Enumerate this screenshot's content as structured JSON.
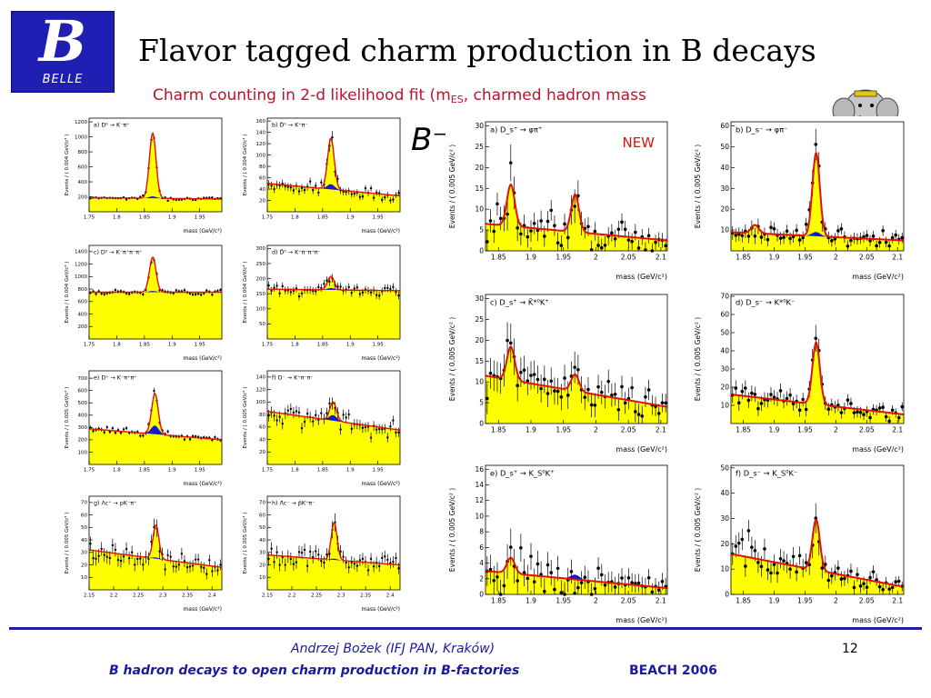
{
  "slide": {
    "title": "Flavor tagged charm production in B decays",
    "subtitle": "Charm counting in 2-d likelihood fit (m",
    "subtitle_sub": "ES",
    "subtitle_rest": ", charmed hadron mass",
    "b_label": "B⁻",
    "new_badge": "NEW",
    "page_number": "12",
    "logo_letter": "B",
    "logo_word": "BELLE"
  },
  "footer": {
    "author": "Andrzej Bożek (IFJ PAN, Kraków)",
    "talk_title": "B hadron decays to open charm production in B-factories",
    "conference": "BEACH 2006"
  },
  "colors": {
    "fill": "#ffff00",
    "curve": "#e01010",
    "signal_blue": "#1818d0",
    "footer_blue": "#1a1aa0",
    "subtitle_red": "#c0102a"
  },
  "chart_data": [
    {
      "type": "scatter",
      "panel": "a)",
      "channel": "D⁰ → K⁻π⁺",
      "ylabel": "Events / ( 0.004 GeV/c² )",
      "xlabel": "mass (GeV/c²)",
      "xticks": [
        "1.75",
        "1.8",
        "1.85",
        "1.9",
        "1.95"
      ],
      "yticks": [
        "200",
        "400",
        "600",
        "800",
        "1000",
        "1200"
      ],
      "xlim": [
        1.75,
        1.99
      ],
      "ylim": [
        0,
        1250
      ],
      "background": [
        190,
        170
      ],
      "peaks": [
        {
          "x": 1.865,
          "height": 870,
          "width": 0.006
        }
      ],
      "blue_peak": {
        "x": 1.865,
        "height": 25
      }
    },
    {
      "type": "scatter",
      "panel": "b)",
      "channel": "D̄⁰ → K⁺π⁻",
      "ylabel": "Events / ( 0.004 GeV/c² )",
      "xlabel": "mass (GeV/c²)",
      "xticks": [
        "1.75",
        "1.8",
        "1.85",
        "1.9",
        "1.95"
      ],
      "yticks": [
        "20",
        "40",
        "60",
        "80",
        "100",
        "120",
        "140",
        "160"
      ],
      "xlim": [
        1.75,
        1.99
      ],
      "ylim": [
        0,
        165
      ],
      "background": [
        50,
        28
      ],
      "peaks": [
        {
          "x": 1.865,
          "height": 90,
          "width": 0.006
        }
      ],
      "blue_peak": {
        "x": 1.865,
        "height": 9
      }
    },
    {
      "type": "scatter",
      "panel": "c)",
      "channel": "D⁰ → K⁻π⁺π⁻π⁺",
      "ylabel": "Events / ( 0.004 GeV/c² )",
      "xlabel": "mass (GeV/c²)",
      "xticks": [
        "1.75",
        "1.8",
        "1.85",
        "1.9",
        "1.95"
      ],
      "yticks": [
        "200",
        "400",
        "600",
        "800",
        "1000",
        "1200",
        "1400"
      ],
      "xlim": [
        1.75,
        1.99
      ],
      "ylim": [
        0,
        1500
      ],
      "background": [
        750,
        750
      ],
      "peaks": [
        {
          "x": 1.865,
          "height": 560,
          "width": 0.006
        }
      ],
      "blue_peak": {
        "x": 1.865,
        "height": 20
      }
    },
    {
      "type": "scatter",
      "panel": "d)",
      "channel": "D̄⁰ → K⁺π⁻π⁺π⁻",
      "ylabel": "Events / ( 0.004 GeV/c² )",
      "xlabel": "mass (GeV/c²)",
      "xticks": [
        "1.75",
        "1.8",
        "1.85",
        "1.9",
        "1.95"
      ],
      "yticks": [
        "50",
        "100",
        "150",
        "200",
        "250",
        "300"
      ],
      "xlim": [
        1.75,
        1.99
      ],
      "ylim": [
        0,
        310
      ],
      "background": [
        165,
        160
      ],
      "peaks": [
        {
          "x": 1.865,
          "height": 45,
          "width": 0.006
        }
      ],
      "blue_peak": {
        "x": 1.865,
        "height": 6
      }
    },
    {
      "type": "scatter",
      "panel": "e)",
      "channel": "D⁺ → K⁻π⁺π⁺",
      "ylabel": "Events / ( 0.005 GeV/c² )",
      "xlabel": "mass (GeV/c²)",
      "xticks": [
        "1.75",
        "1.8",
        "1.85",
        "1.9",
        "1.95"
      ],
      "yticks": [
        "100",
        "200",
        "300",
        "400",
        "500",
        "600",
        "700"
      ],
      "xlim": [
        1.75,
        1.99
      ],
      "ylim": [
        0,
        760
      ],
      "background": [
        290,
        200
      ],
      "peaks": [
        {
          "x": 1.869,
          "height": 330,
          "width": 0.006
        }
      ],
      "blue_peak": {
        "x": 1.869,
        "height": 70
      }
    },
    {
      "type": "scatter",
      "panel": "f)",
      "channel": "D⁻ → K⁺π⁻π⁻",
      "ylabel": "Events / ( 0.005 GeV/c² )",
      "xlabel": "mass (GeV/c²)",
      "xticks": [
        "1.75",
        "1.8",
        "1.85",
        "1.9",
        "1.95"
      ],
      "yticks": [
        "20",
        "40",
        "60",
        "80",
        "100",
        "120",
        "140"
      ],
      "xlim": [
        1.75,
        1.99
      ],
      "ylim": [
        0,
        150
      ],
      "background": [
        85,
        55
      ],
      "peaks": [
        {
          "x": 1.869,
          "height": 30,
          "width": 0.006
        }
      ],
      "blue_peak": {
        "x": 1.869,
        "height": 9
      }
    },
    {
      "type": "scatter",
      "panel": "g)",
      "channel": "Λc⁺ → pK⁻π⁺",
      "ylabel": "Events / ( 0.005 GeV/c² )",
      "xlabel": "mass (GeV/c²)",
      "xticks": [
        "2.15",
        "2.2",
        "2.25",
        "2.3",
        "2.35",
        "2.4"
      ],
      "yticks": [
        "10",
        "20",
        "30",
        "40",
        "50",
        "60",
        "70"
      ],
      "xlim": [
        2.15,
        2.42
      ],
      "ylim": [
        0,
        75
      ],
      "background": [
        32,
        18
      ],
      "peaks": [
        {
          "x": 2.286,
          "height": 27,
          "width": 0.006
        }
      ],
      "blue_peak": {
        "x": 2.286,
        "height": 1
      }
    },
    {
      "type": "scatter",
      "panel": "h)",
      "channel": "Λ̄c⁻ → p̄K⁺π⁻",
      "ylabel": "Events / ( 0.005 GeV/c² )",
      "xlabel": "mass (GeV/c²)",
      "xticks": [
        "2.15",
        "2.2",
        "2.25",
        "2.3",
        "2.35",
        "2.4"
      ],
      "yticks": [
        "10",
        "20",
        "30",
        "40",
        "50",
        "60",
        "70"
      ],
      "xlim": [
        2.15,
        2.42
      ],
      "ylim": [
        0,
        75
      ],
      "background": [
        28,
        20
      ],
      "peaks": [
        {
          "x": 2.286,
          "height": 30,
          "width": 0.006
        }
      ],
      "blue_peak": {
        "x": 2.286,
        "height": 1
      }
    },
    {
      "type": "scatter",
      "panel": "a)",
      "channel": "D_s⁺ → φπ⁺",
      "ylabel": "Events / ( 0.005 GeV/c² )",
      "xlabel": "mass (GeV/c²)",
      "xticks": [
        "1.85",
        "1.9",
        "1.95",
        "2",
        "2.05",
        "2.1"
      ],
      "yticks": [
        "0",
        "5",
        "10",
        "15",
        "20",
        "25",
        "30"
      ],
      "xlim": [
        1.83,
        2.11
      ],
      "ylim": [
        0,
        31
      ],
      "background": [
        6.5,
        2.5
      ],
      "peaks": [
        {
          "x": 1.869,
          "height": 10,
          "width": 0.006
        },
        {
          "x": 1.968,
          "height": 9,
          "width": 0.006
        }
      ],
      "blue_peak": null
    },
    {
      "type": "scatter",
      "panel": "b)",
      "channel": "D_s⁻ → φπ⁻",
      "ylabel": "Events / ( 0.005 GeV/c² )",
      "xlabel": "mass (GeV/c²)",
      "xticks": [
        "1.85",
        "1.9",
        "1.95",
        "2",
        "2.05",
        "2.1"
      ],
      "yticks": [
        "10",
        "20",
        "30",
        "40",
        "50",
        "60"
      ],
      "xlim": [
        1.83,
        2.11
      ],
      "ylim": [
        0,
        62
      ],
      "background": [
        9,
        5
      ],
      "peaks": [
        {
          "x": 1.869,
          "height": 4,
          "width": 0.006
        },
        {
          "x": 1.968,
          "height": 40,
          "width": 0.006
        }
      ],
      "blue_peak": {
        "x": 1.968,
        "height": 2
      }
    },
    {
      "type": "scatter",
      "panel": "c)",
      "channel": "D_s⁺ → K̄*⁰K⁺",
      "ylabel": "Events / ( 0.005 GeV/c² )",
      "xlabel": "mass (GeV/c²)",
      "xticks": [
        "1.85",
        "1.9",
        "1.95",
        "2",
        "2.05",
        "2.1"
      ],
      "yticks": [
        "0",
        "5",
        "10",
        "15",
        "20",
        "25",
        "30"
      ],
      "xlim": [
        1.83,
        2.11
      ],
      "ylim": [
        0,
        31
      ],
      "background": [
        11.5,
        4
      ],
      "peaks": [
        {
          "x": 1.869,
          "height": 8,
          "width": 0.006
        },
        {
          "x": 1.968,
          "height": 4,
          "width": 0.006
        }
      ],
      "blue_peak": null
    },
    {
      "type": "scatter",
      "panel": "d)",
      "channel": "D_s⁻ → K*⁰K⁻",
      "ylabel": "Events / ( 0.005 GeV/c² )",
      "xlabel": "mass (GeV/c²)",
      "xticks": [
        "1.85",
        "1.9",
        "1.95",
        "2",
        "2.05",
        "2.1"
      ],
      "yticks": [
        "10",
        "20",
        "30",
        "40",
        "50",
        "60",
        "70"
      ],
      "xlim": [
        1.83,
        2.11
      ],
      "ylim": [
        0,
        71
      ],
      "background": [
        16,
        5
      ],
      "peaks": [
        {
          "x": 1.968,
          "height": 34,
          "width": 0.006
        }
      ],
      "blue_peak": null
    },
    {
      "type": "scatter",
      "panel": "e)",
      "channel": "D_s⁺ → K_S⁰K⁺",
      "ylabel": "Events / ( 0.005 GeV/c² )",
      "xlabel": "mass (GeV/c²)",
      "xticks": [
        "1.85",
        "1.9",
        "1.95",
        "2",
        "2.05",
        "2.1"
      ],
      "yticks": [
        "0",
        "2",
        "4",
        "6",
        "8",
        "10",
        "12",
        "14",
        "16"
      ],
      "xlim": [
        1.83,
        2.11
      ],
      "ylim": [
        0,
        16.5
      ],
      "background": [
        3,
        0.8
      ],
      "peaks": [
        {
          "x": 1.869,
          "height": 2,
          "width": 0.006
        }
      ],
      "blue_peak": {
        "x": 1.968,
        "height": 0.6
      }
    },
    {
      "type": "scatter",
      "panel": "f)",
      "channel": "D_s⁻ → K_S⁰K⁻",
      "ylabel": "Events / ( 0.005 GeV/c² )",
      "xlabel": "mass (GeV/c²)",
      "xticks": [
        "1.85",
        "1.9",
        "1.95",
        "2",
        "2.05",
        "2.1"
      ],
      "yticks": [
        "0",
        "10",
        "20",
        "30",
        "40",
        "50"
      ],
      "xlim": [
        1.83,
        2.11
      ],
      "ylim": [
        0,
        51
      ],
      "background": [
        16,
        3
      ],
      "peaks": [
        {
          "x": 1.968,
          "height": 20,
          "width": 0.006
        }
      ],
      "blue_peak": null
    }
  ]
}
